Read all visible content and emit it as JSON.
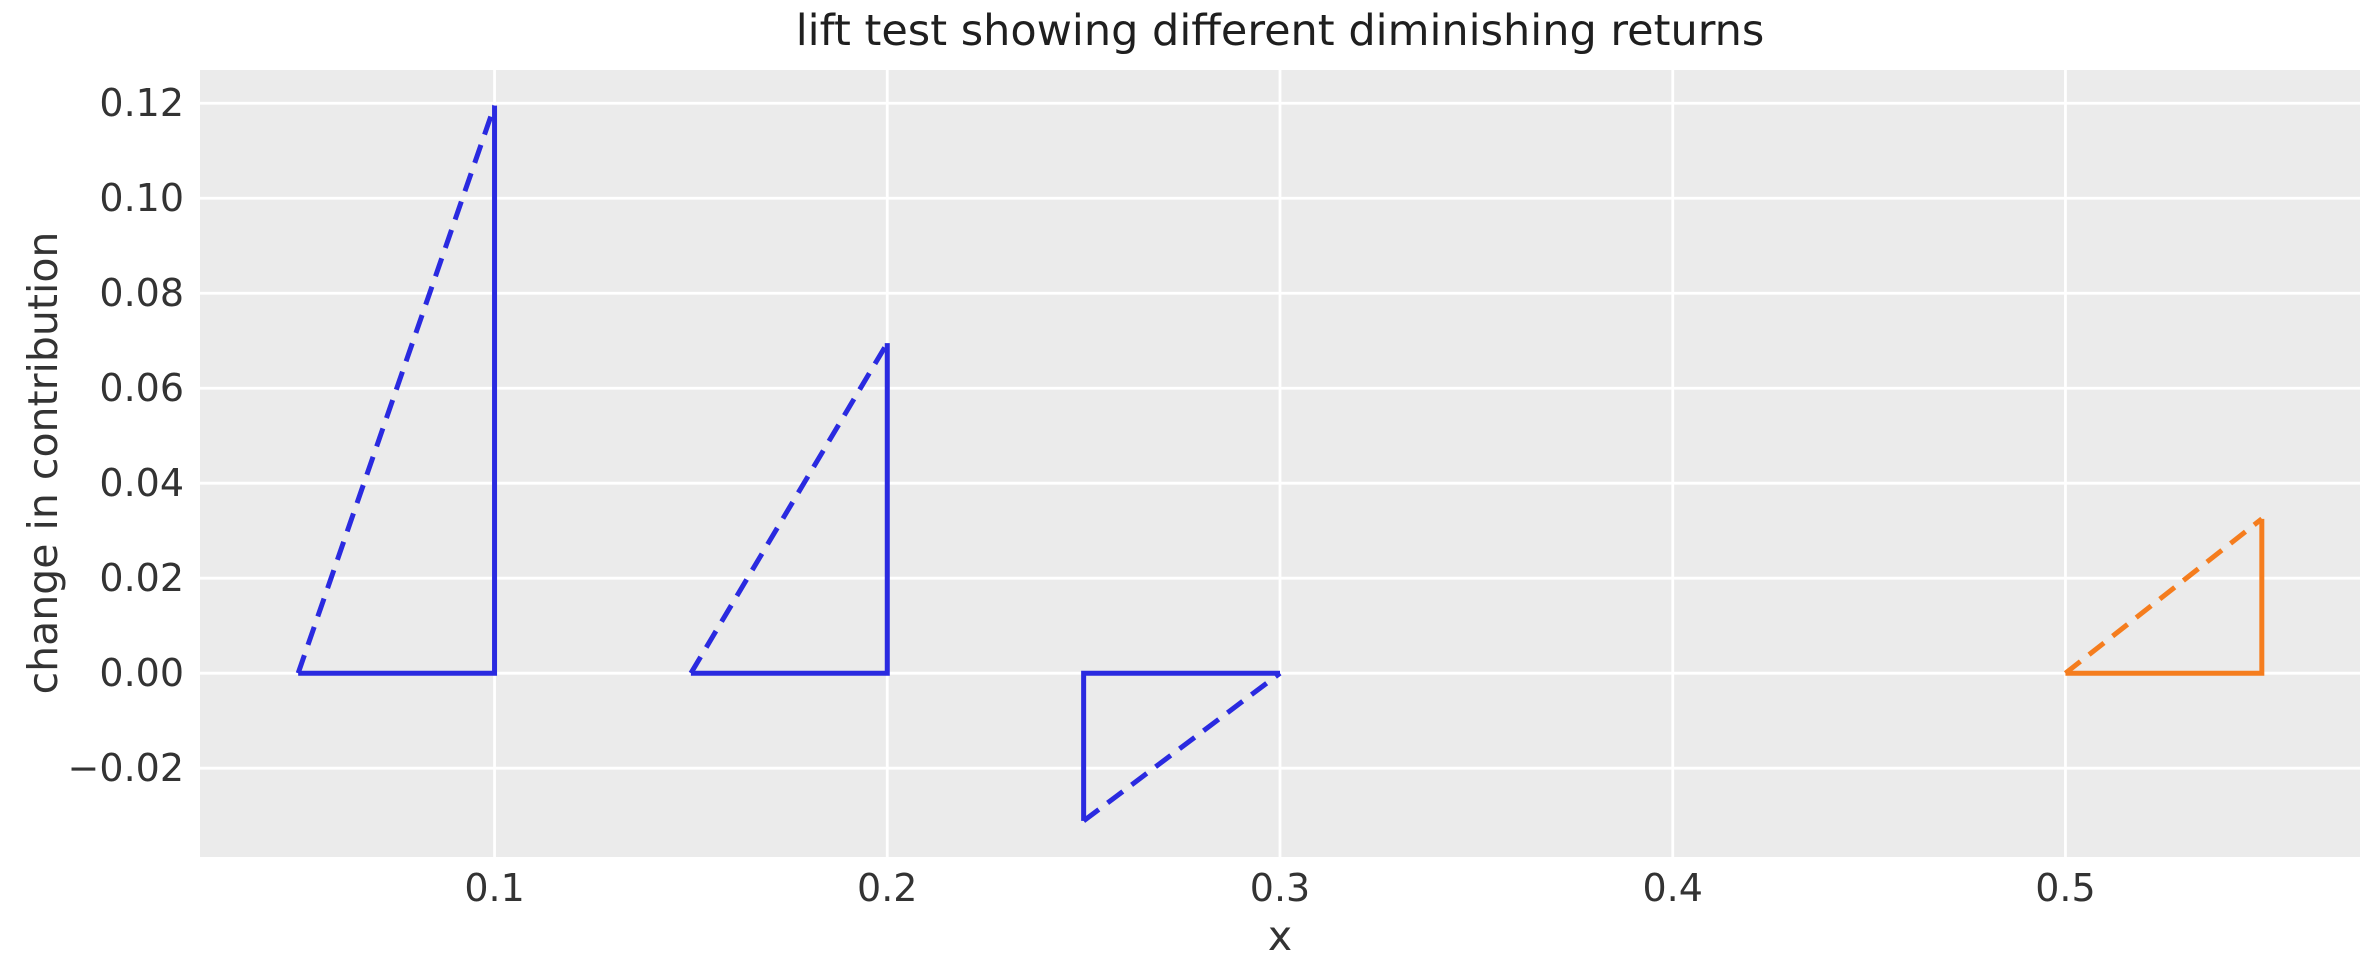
{
  "chart_data": {
    "type": "line",
    "title": "lift test showing different diminishing returns",
    "xlabel": "x",
    "ylabel": "change in contribution",
    "xlim": [
      0.025,
      0.575
    ],
    "ylim": [
      -0.0387,
      0.127
    ],
    "grid": "on",
    "legend": "none",
    "plot_background_color": "#ebebeb",
    "gridline_color": "#ffffff",
    "xticks": [
      {
        "value": 0.1,
        "label": "0.1"
      },
      {
        "value": 0.2,
        "label": "0.2"
      },
      {
        "value": 0.3,
        "label": "0.3"
      },
      {
        "value": 0.4,
        "label": "0.4"
      },
      {
        "value": 0.5,
        "label": "0.5"
      }
    ],
    "yticks": [
      {
        "value": 0.12,
        "label": "0.12"
      },
      {
        "value": 0.1,
        "label": "0.10"
      },
      {
        "value": 0.08,
        "label": "0.08"
      },
      {
        "value": 0.06,
        "label": "0.06"
      },
      {
        "value": 0.04,
        "label": "0.04"
      },
      {
        "value": 0.02,
        "label": "0.02"
      },
      {
        "value": 0.0,
        "label": "0.00"
      },
      {
        "value": -0.02,
        "label": "−0.02"
      }
    ],
    "colors": {
      "blue_series": "#2a2ae0",
      "orange_series": "#f57d1e"
    },
    "lift_tests": [
      {
        "x_from": 0.05,
        "x_to": 0.1,
        "delta_contribution": 0.1195,
        "color": "#2a2ae0"
      },
      {
        "x_from": 0.15,
        "x_to": 0.2,
        "delta_contribution": 0.0695,
        "color": "#2a2ae0"
      },
      {
        "x_from": 0.25,
        "x_to": 0.3,
        "delta_contribution": -0.0311,
        "color": "#2a2ae0"
      },
      {
        "x_from": 0.5,
        "x_to": 0.55,
        "delta_contribution": 0.0325,
        "color": "#f57d1e"
      }
    ],
    "triangles": [
      {
        "id": "lift-triangle-1",
        "color": "#2a2ae0",
        "solid_points": [
          [
            0.05,
            0
          ],
          [
            0.1,
            0
          ],
          [
            0.1,
            0.1195
          ]
        ],
        "dashed_points": [
          [
            0.05,
            0
          ],
          [
            0.1,
            0.1195
          ]
        ]
      },
      {
        "id": "lift-triangle-2",
        "color": "#2a2ae0",
        "solid_points": [
          [
            0.15,
            0
          ],
          [
            0.2,
            0
          ],
          [
            0.2,
            0.0695
          ]
        ],
        "dashed_points": [
          [
            0.15,
            0
          ],
          [
            0.2,
            0.0695
          ]
        ]
      },
      {
        "id": "lift-triangle-3",
        "color": "#2a2ae0",
        "solid_points": [
          [
            0.3,
            0
          ],
          [
            0.25,
            0
          ],
          [
            0.25,
            -0.0311
          ]
        ],
        "dashed_points": [
          [
            0.25,
            -0.0311
          ],
          [
            0.3,
            0
          ]
        ]
      },
      {
        "id": "lift-triangle-4",
        "color": "#f57d1e",
        "solid_points": [
          [
            0.5,
            0
          ],
          [
            0.55,
            0
          ],
          [
            0.55,
            0.0325
          ]
        ],
        "dashed_points": [
          [
            0.5,
            0
          ],
          [
            0.55,
            0.0325
          ]
        ]
      }
    ],
    "line_style": {
      "solid_width": 5,
      "dashed_width": 5,
      "dash_pattern": "19 11",
      "grid_width": 2.8
    }
  }
}
